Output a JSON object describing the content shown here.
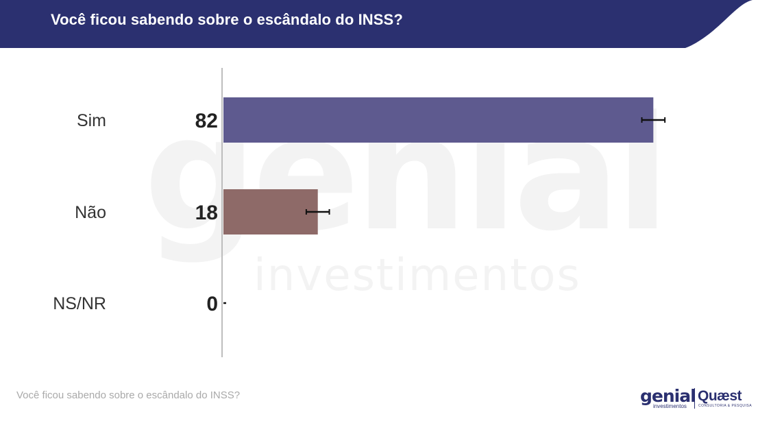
{
  "header": {
    "title": "Você ficou sabendo sobre o escândalo do INSS?"
  },
  "watermark": {
    "brand": "genial",
    "subtitle": "investimentos"
  },
  "chart_data": {
    "type": "bar",
    "orientation": "horizontal",
    "categories": [
      "Sim",
      "Não",
      "NS/NR"
    ],
    "values": [
      82,
      18,
      0
    ],
    "error_bars": [
      2.2,
      2.2,
      0
    ],
    "colors": [
      "#5e5a8f",
      "#8e6a68",
      "#5e5a8f"
    ],
    "xlim": [
      0,
      100
    ],
    "grid": false,
    "legend": "none",
    "title": "",
    "xlabel": "",
    "ylabel": ""
  },
  "footer": {
    "note": "Você ficou sabendo sobre o escândalo do INSS?",
    "logo_genial": "genial",
    "logo_genial_sub": "investimentos",
    "logo_quaest": "Quæst",
    "logo_quaest_sub": "CONSULTORIA & PESQUISA"
  },
  "colors": {
    "header": "#2b3070",
    "axis": "#bdbdbd",
    "label": "#333333",
    "value": "#222222"
  }
}
